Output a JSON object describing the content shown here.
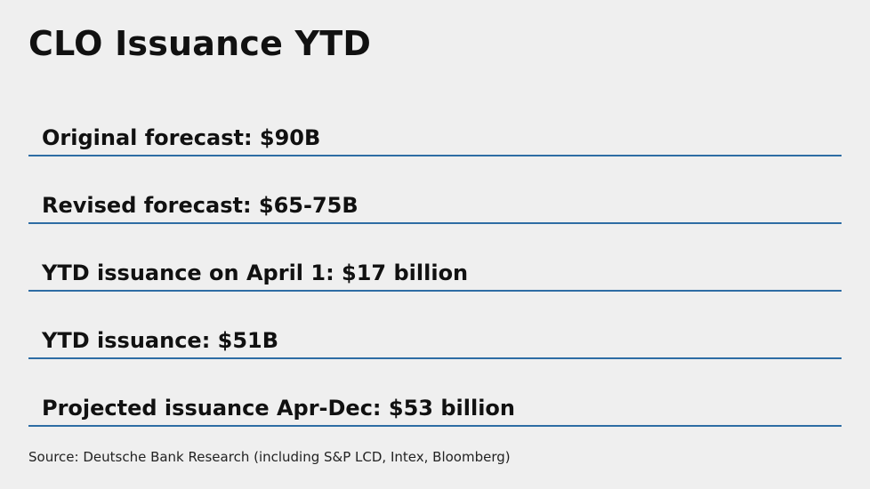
{
  "title": "CLO Issuance YTD",
  "rows": [
    {
      "text": "Original forecast: $90B"
    },
    {
      "text": "Revised forecast: $65-75B"
    },
    {
      "text": "YTD issuance on April 1: $17 billion"
    },
    {
      "text": "YTD issuance: $51B"
    },
    {
      "text": "Projected issuance Apr-Dec: $53 billion"
    }
  ],
  "source": "Source: Deutsche Bank Research (including S&P LCD, Intex, Bloomberg)",
  "colors": {
    "background": "#efefef",
    "rule": "#2e6da4",
    "text": "#111111"
  }
}
